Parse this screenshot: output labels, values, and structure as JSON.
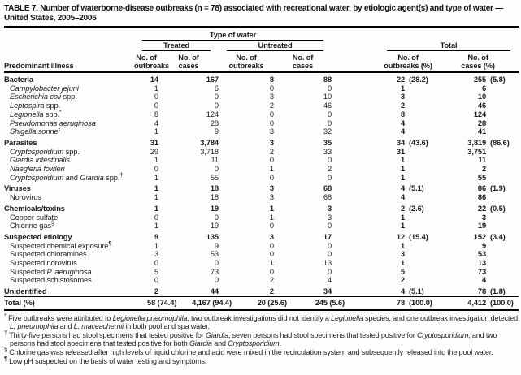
{
  "title": "TABLE 7. Number of waterborne-disease outbreaks (n = 78) associated with recreational water, by etiologic agent(s) and type of water — United States, 2005–2006",
  "colors": {
    "text": "#1b1b1b",
    "rule": "#000000",
    "background": "#fefefe"
  },
  "header": {
    "col_label": "Predominant illness",
    "type_of_water": "Type of water",
    "treated": "Treated",
    "untreated": "Untreated",
    "total": "Total",
    "no_of": "No. of",
    "outbreaks": "outbreaks",
    "cases": "cases",
    "outbreaks_pct": "outbreaks (%)",
    "cases_pct": "cases (%)"
  },
  "rows": [
    {
      "label": [
        [
          "Bacteria",
          "r"
        ]
      ],
      "bold": true,
      "indent": false,
      "cells": [
        "14",
        "167",
        "8",
        "88",
        "22",
        "(28.2)",
        "255",
        "(5.8)"
      ]
    },
    {
      "label": [
        [
          "Campylobacter jejuni",
          "i"
        ]
      ],
      "bold": false,
      "indent": true,
      "cells": [
        "1",
        "6",
        "0",
        "0",
        "1",
        "",
        "6",
        ""
      ]
    },
    {
      "label": [
        [
          "Escherichia coli",
          "i"
        ],
        [
          " spp.",
          "r"
        ]
      ],
      "bold": false,
      "indent": true,
      "cells": [
        "0",
        "0",
        "3",
        "10",
        "3",
        "",
        "10",
        ""
      ]
    },
    {
      "label": [
        [
          "Leptospira",
          "i"
        ],
        [
          " spp.",
          "r"
        ]
      ],
      "bold": false,
      "indent": true,
      "cells": [
        "0",
        "0",
        "2",
        "46",
        "2",
        "",
        "46",
        ""
      ]
    },
    {
      "label": [
        [
          "Legionella",
          "i"
        ],
        [
          " spp.",
          "r"
        ],
        [
          "*",
          "sup"
        ]
      ],
      "bold": false,
      "indent": true,
      "cells": [
        "8",
        "124",
        "0",
        "0",
        "8",
        "",
        "124",
        ""
      ]
    },
    {
      "label": [
        [
          "Pseudomonas aeruginosa",
          "i"
        ]
      ],
      "bold": false,
      "indent": true,
      "cells": [
        "4",
        "28",
        "0",
        "0",
        "4",
        "",
        "28",
        ""
      ]
    },
    {
      "label": [
        [
          "Shigella sonnei",
          "i"
        ]
      ],
      "bold": false,
      "indent": true,
      "cells": [
        "1",
        "9",
        "3",
        "32",
        "4",
        "",
        "41",
        ""
      ]
    },
    {
      "label": [
        [
          "Parasites",
          "r"
        ]
      ],
      "bold": true,
      "indent": false,
      "cells": [
        "31",
        "3,784",
        "3",
        "35",
        "34",
        "(43.6)",
        "3,819",
        "(86.6)"
      ]
    },
    {
      "label": [
        [
          "Cryptosporidium",
          "i"
        ],
        [
          " spp.",
          "r"
        ]
      ],
      "bold": false,
      "indent": true,
      "cells": [
        "29",
        "3,718",
        "2",
        "33",
        "31",
        "",
        "3,751",
        ""
      ]
    },
    {
      "label": [
        [
          "Giardia intestinalis",
          "i"
        ]
      ],
      "bold": false,
      "indent": true,
      "cells": [
        "1",
        "11",
        "0",
        "0",
        "1",
        "",
        "11",
        ""
      ]
    },
    {
      "label": [
        [
          "Naegleria fowleri",
          "i"
        ]
      ],
      "bold": false,
      "indent": true,
      "cells": [
        "0",
        "0",
        "1",
        "2",
        "1",
        "",
        "2",
        ""
      ]
    },
    {
      "label": [
        [
          "Cryptosporidium",
          "i"
        ],
        [
          " and ",
          "r"
        ],
        [
          "Giardia",
          "i"
        ],
        [
          " spp.",
          "r"
        ],
        [
          "†",
          "sup"
        ]
      ],
      "bold": false,
      "indent": true,
      "cells": [
        "1",
        "55",
        "0",
        "0",
        "1",
        "",
        "55",
        ""
      ]
    },
    {
      "label": [
        [
          "Viruses",
          "r"
        ]
      ],
      "bold": true,
      "indent": false,
      "cells": [
        "1",
        "18",
        "3",
        "68",
        "4",
        "(5.1)",
        "86",
        "(1.9)"
      ]
    },
    {
      "label": [
        [
          "Norovirus",
          "r"
        ]
      ],
      "bold": false,
      "indent": true,
      "cells": [
        "1",
        "18",
        "3",
        "68",
        "4",
        "",
        "86",
        ""
      ]
    },
    {
      "label": [
        [
          "Chemicals/toxins",
          "r"
        ]
      ],
      "bold": true,
      "indent": false,
      "cells": [
        "1",
        "19",
        "1",
        "3",
        "2",
        "(2.6)",
        "22",
        "(0.5)"
      ]
    },
    {
      "label": [
        [
          "Copper sulfate",
          "r"
        ]
      ],
      "bold": false,
      "indent": true,
      "cells": [
        "0",
        "0",
        "1",
        "3",
        "1",
        "",
        "3",
        ""
      ]
    },
    {
      "label": [
        [
          "Chlorine gas",
          "r"
        ],
        [
          "§",
          "sup"
        ]
      ],
      "bold": false,
      "indent": true,
      "cells": [
        "1",
        "19",
        "0",
        "0",
        "1",
        "",
        "19",
        ""
      ]
    },
    {
      "label": [
        [
          "Suspected etiology",
          "r"
        ]
      ],
      "bold": true,
      "indent": false,
      "cells": [
        "9",
        "135",
        "3",
        "17",
        "12",
        "(15.4)",
        "152",
        "(3.4)"
      ]
    },
    {
      "label": [
        [
          "Suspected chemical exposure",
          "r"
        ],
        [
          "¶",
          "sup"
        ]
      ],
      "bold": false,
      "indent": true,
      "cells": [
        "1",
        "9",
        "0",
        "0",
        "1",
        "",
        "9",
        ""
      ]
    },
    {
      "label": [
        [
          "Suspected chloramines",
          "r"
        ]
      ],
      "bold": false,
      "indent": true,
      "cells": [
        "3",
        "53",
        "0",
        "0",
        "3",
        "",
        "53",
        ""
      ]
    },
    {
      "label": [
        [
          "Suspected norovirus",
          "r"
        ]
      ],
      "bold": false,
      "indent": true,
      "cells": [
        "0",
        "0",
        "1",
        "13",
        "1",
        "",
        "13",
        ""
      ]
    },
    {
      "label": [
        [
          "Suspected ",
          "r"
        ],
        [
          "P. aeruginosa",
          "i"
        ]
      ],
      "bold": false,
      "indent": true,
      "cells": [
        "5",
        "73",
        "0",
        "0",
        "5",
        "",
        "73",
        ""
      ]
    },
    {
      "label": [
        [
          "Suspected schistosomes",
          "r"
        ]
      ],
      "bold": false,
      "indent": true,
      "cells": [
        "0",
        "0",
        "2",
        "4",
        "2",
        "",
        "4",
        ""
      ]
    },
    {
      "label": [
        [
          "Unidentified",
          "r"
        ]
      ],
      "bold": true,
      "indent": false,
      "cells": [
        "2",
        "44",
        "2",
        "34",
        "4",
        "(5.1)",
        "78",
        "(1.8)"
      ]
    },
    {
      "label": [
        [
          "Total (%)",
          "r"
        ]
      ],
      "bold": true,
      "indent": false,
      "total": true,
      "cells": [
        "58 (74.4)",
        "4,167 (94.4)",
        "20 (25.6)",
        "245 (5.6)",
        "78",
        "(100.0)",
        "4,412",
        "(100.0)"
      ]
    }
  ],
  "footnotes": [
    {
      "marker": "*",
      "segments": [
        [
          "Five outbreaks were attributed to ",
          "r"
        ],
        [
          "Legionella pneumophila",
          "i"
        ],
        [
          ", two outbreak investigations did not identify a ",
          "r"
        ],
        [
          "Legionella",
          "i"
        ],
        [
          " species, and one outbreak investigation detected ",
          "r"
        ],
        [
          "L. pneumophila",
          "i"
        ],
        [
          " and ",
          "r"
        ],
        [
          "L. maceachernii",
          "i"
        ],
        [
          " in both pool and spa water.",
          "r"
        ]
      ]
    },
    {
      "marker": "†",
      "segments": [
        [
          "Thirty-five persons had stool specimens that tested positive for ",
          "r"
        ],
        [
          "Giardia",
          "i"
        ],
        [
          ", seven persons had stool specimens that tested positive for ",
          "r"
        ],
        [
          "Cryptosporidium",
          "i"
        ],
        [
          ", and two persons had stool specimens that tested positive for both ",
          "r"
        ],
        [
          "Giardia",
          "i"
        ],
        [
          " and ",
          "r"
        ],
        [
          "Cryptosporidium",
          "i"
        ],
        [
          ".",
          "r"
        ]
      ]
    },
    {
      "marker": "§",
      "segments": [
        [
          "Chlorine gas was released after high levels of liquid chlorine and acid were mixed in the recirculation system and subsequently released into the pool water.",
          "r"
        ]
      ]
    },
    {
      "marker": "¶",
      "segments": [
        [
          "Low pH suspected on the basis of water testing and symptoms.",
          "r"
        ]
      ]
    }
  ]
}
